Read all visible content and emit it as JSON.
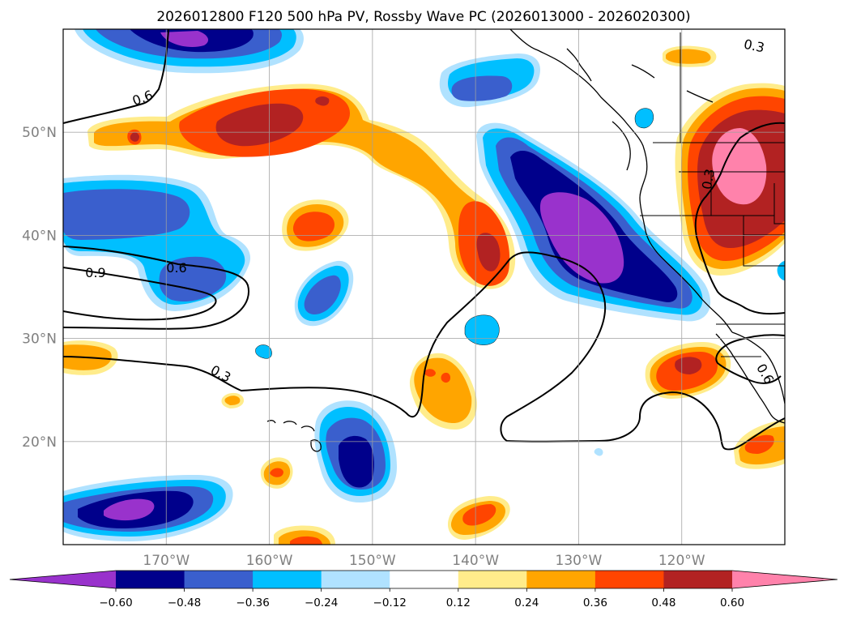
{
  "title": "2026012800 F120 500 hPa PV, Rossby Wave PC (2026013000 - 2026020300)",
  "map": {
    "lon_range": [
      -180,
      -110
    ],
    "lat_range": [
      10,
      60
    ],
    "lon_ticks": [
      -170,
      -160,
      -150,
      -140,
      -130,
      -120
    ],
    "lat_ticks": [
      20,
      30,
      40,
      50
    ],
    "lon_labels": [
      "170°W",
      "160°W",
      "150°W",
      "140°W",
      "130°W",
      "120°W"
    ],
    "lat_labels": [
      "20°N",
      "30°N",
      "40°N",
      "50°N"
    ]
  },
  "contour_labels": {
    "c1": "0.6",
    "c2": "0.9",
    "c3": "0.6",
    "c4": "0.3",
    "c5": "0.3",
    "c6": "0.3",
    "c7": "0.6"
  },
  "colorbar": {
    "levels": [
      "−0.60",
      "−0.48",
      "−0.36",
      "−0.24",
      "−0.12",
      "0.12",
      "0.24",
      "0.36",
      "0.48",
      "0.60"
    ],
    "colors": [
      "#9932cc",
      "#00008b",
      "#3a5fcd",
      "#00bfff",
      "#b0e2ff",
      "#ffffff",
      "#ffec8b",
      "#ffa500",
      "#ff4500",
      "#b22222",
      "#ff82ab"
    ]
  },
  "colors": {
    "purple": "#9932cc",
    "navy": "#00008b",
    "blue": "#3a5fcd",
    "sky": "#00bfff",
    "lightblue": "#b0e2ff",
    "yellow": "#ffec8b",
    "orange": "#ffa500",
    "redorange": "#ff4500",
    "darkred": "#b22222",
    "pink": "#ff82ab"
  }
}
